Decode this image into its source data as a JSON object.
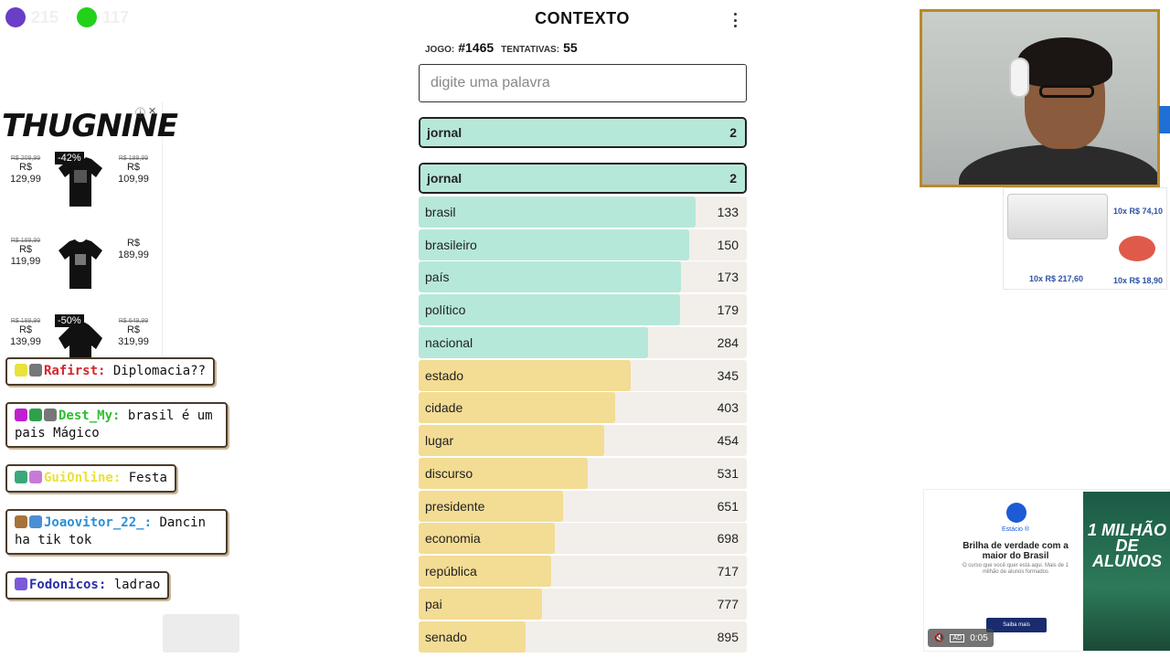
{
  "counters": [
    {
      "color": "#6a3ec7",
      "value": "215"
    },
    {
      "color": "#22d11a",
      "value": "117"
    }
  ],
  "game": {
    "title": "CONTEXTO",
    "game_label": "JOGO:",
    "game_number": "#1465",
    "attempts_label": "TENTATIVAS:",
    "attempts": "55",
    "input_placeholder": "digite uma palavra",
    "last_guess": {
      "word": "jornal",
      "rank": "2"
    },
    "guesses": [
      {
        "word": "jornal",
        "rank": "2",
        "fill": 1.0,
        "color": "#b6e8da"
      },
      {
        "word": "brasil",
        "rank": "133",
        "fill": 0.845,
        "color": "#b6e8da"
      },
      {
        "word": "brasileiro",
        "rank": "150",
        "fill": 0.825,
        "color": "#b6e8da"
      },
      {
        "word": "país",
        "rank": "173",
        "fill": 0.8,
        "color": "#b6e8da"
      },
      {
        "word": "político",
        "rank": "179",
        "fill": 0.797,
        "color": "#b6e8da"
      },
      {
        "word": "nacional",
        "rank": "284",
        "fill": 0.7,
        "color": "#b6e8da"
      },
      {
        "word": "estado",
        "rank": "345",
        "fill": 0.645,
        "color": "#f3dc94"
      },
      {
        "word": "cidade",
        "rank": "403",
        "fill": 0.6,
        "color": "#f3dc94"
      },
      {
        "word": "lugar",
        "rank": "454",
        "fill": 0.565,
        "color": "#f3dc94"
      },
      {
        "word": "discurso",
        "rank": "531",
        "fill": 0.515,
        "color": "#f3dc94"
      },
      {
        "word": "presidente",
        "rank": "651",
        "fill": 0.44,
        "color": "#f3dc94"
      },
      {
        "word": "economia",
        "rank": "698",
        "fill": 0.415,
        "color": "#f3dc94"
      },
      {
        "word": "república",
        "rank": "717",
        "fill": 0.405,
        "color": "#f3dc94"
      },
      {
        "word": "pai",
        "rank": "777",
        "fill": 0.375,
        "color": "#f3dc94"
      },
      {
        "word": "senado",
        "rank": "895",
        "fill": 0.325,
        "color": "#f3dc94"
      }
    ]
  },
  "ad_left": {
    "brand": "THUGNINE",
    "products": [
      {
        "left_old": "R$ 209,99",
        "left_price": "R$ 129,99",
        "badge": "-42%",
        "right_old": "R$ 189,99",
        "right_price": "R$ 109,99"
      },
      {
        "left_old": "R$ 189,99",
        "left_price": "R$ 119,99",
        "badge": "",
        "right_old": "",
        "right_price": "R$ 189,99"
      },
      {
        "left_old": "R$ 189,99",
        "left_price": "R$ 139,99",
        "badge": "-50%",
        "right_old": "R$ 649,99",
        "right_price": "R$ 319,99"
      }
    ]
  },
  "chat": [
    {
      "user": "Rafirst:",
      "text": " Diplomacia??",
      "color": "#d4262a"
    },
    {
      "user": "Dest_My:",
      "text": " brasil é um pais Mágico",
      "color": "#2fbf2f"
    },
    {
      "user": "GuiOnline:",
      "text": " Festa",
      "color": "#e9e23a"
    },
    {
      "user": "Joaovitor_22_:",
      "text": " Dancin ha tik tok",
      "color": "#2a8fd6"
    },
    {
      "user": "Fodonicos:",
      "text": " ladrao",
      "color": "#2a2fa8"
    }
  ],
  "ad_right": {
    "price1": "10x R$ 74,10",
    "price2": "10x R$ 217,60",
    "price3": "10x R$ 18,90"
  },
  "video_ad": {
    "brand": "Estácio ®",
    "headline": "Brilha de verdade com a maior do Brasil",
    "subtext": "O curso que você quer está aqui. Mais de 1 milhão de alunos formados",
    "button": "Saiba mais",
    "image_title": "1 MILHÃO DE ALUNOS",
    "ad_label": "AD",
    "time": "0:05"
  }
}
